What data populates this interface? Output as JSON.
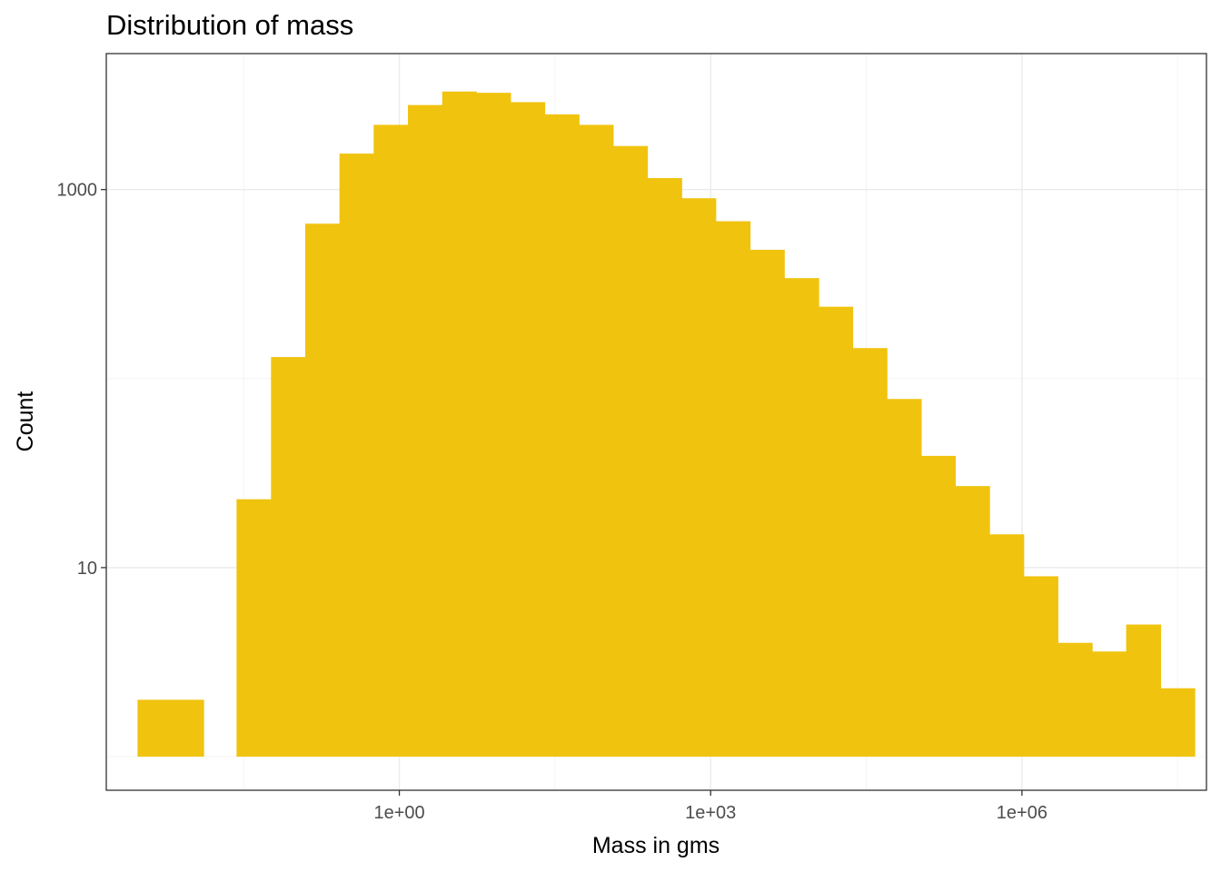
{
  "chart_data": {
    "type": "bar",
    "subtype": "histogram",
    "title": "Distribution of mass",
    "xlabel": "Mass in gms",
    "ylabel": "Count",
    "x_scale": "log10",
    "y_scale": "log10",
    "xlim": [
      0.0015,
      60000000
    ],
    "ylim": [
      1,
      4200
    ],
    "x_ticks": [
      {
        "value": 1,
        "label": "1e+00"
      },
      {
        "value": 1000,
        "label": "1e+03"
      },
      {
        "value": 1000000,
        "label": "1e+06"
      }
    ],
    "y_ticks": [
      {
        "value": 10,
        "label": "10"
      },
      {
        "value": 1000,
        "label": "1000"
      }
    ],
    "y_minor_grid": [
      1,
      100
    ],
    "x_minor_grid": [
      0.0316,
      31.6,
      31600,
      31600000
    ],
    "grid": true,
    "bar_color": "#F0C30F",
    "bars": [
      {
        "x_start": 0.003,
        "x_end": 0.006,
        "count": 2
      },
      {
        "x_start": 0.006,
        "x_end": 0.013,
        "count": 2
      },
      {
        "x_start": 0.013,
        "x_end": 0.027,
        "count": 0
      },
      {
        "x_start": 0.027,
        "x_end": 0.058,
        "count": 23
      },
      {
        "x_start": 0.058,
        "x_end": 0.124,
        "count": 130
      },
      {
        "x_start": 0.124,
        "x_end": 0.265,
        "count": 660
      },
      {
        "x_start": 0.265,
        "x_end": 0.566,
        "count": 1550
      },
      {
        "x_start": 0.566,
        "x_end": 1.21,
        "count": 2200
      },
      {
        "x_start": 1.21,
        "x_end": 2.59,
        "count": 2800
      },
      {
        "x_start": 2.59,
        "x_end": 5.52,
        "count": 3300
      },
      {
        "x_start": 5.52,
        "x_end": 11.8,
        "count": 3250
      },
      {
        "x_start": 11.8,
        "x_end": 25.2,
        "count": 2900
      },
      {
        "x_start": 25.2,
        "x_end": 53.9,
        "count": 2500
      },
      {
        "x_start": 53.9,
        "x_end": 115,
        "count": 2200
      },
      {
        "x_start": 115,
        "x_end": 246,
        "count": 1700
      },
      {
        "x_start": 246,
        "x_end": 526,
        "count": 1150
      },
      {
        "x_start": 526,
        "x_end": 1120,
        "count": 900
      },
      {
        "x_start": 1120,
        "x_end": 2400,
        "count": 680
      },
      {
        "x_start": 2400,
        "x_end": 5130,
        "count": 480
      },
      {
        "x_start": 5130,
        "x_end": 11000,
        "count": 340
      },
      {
        "x_start": 11000,
        "x_end": 23400,
        "count": 240
      },
      {
        "x_start": 23400,
        "x_end": 50000,
        "count": 145
      },
      {
        "x_start": 50000,
        "x_end": 107000,
        "count": 78
      },
      {
        "x_start": 107000,
        "x_end": 228000,
        "count": 39
      },
      {
        "x_start": 228000,
        "x_end": 487000,
        "count": 27
      },
      {
        "x_start": 487000,
        "x_end": 1040000,
        "count": 15
      },
      {
        "x_start": 1040000,
        "x_end": 2220000,
        "count": 9
      },
      {
        "x_start": 2220000,
        "x_end": 4750000,
        "count": 4
      },
      {
        "x_start": 4750000,
        "x_end": 10100000,
        "count": 3.6
      },
      {
        "x_start": 10100000,
        "x_end": 21700000,
        "count": 5
      },
      {
        "x_start": 21700000,
        "x_end": 46300000,
        "count": 2.3
      }
    ]
  }
}
